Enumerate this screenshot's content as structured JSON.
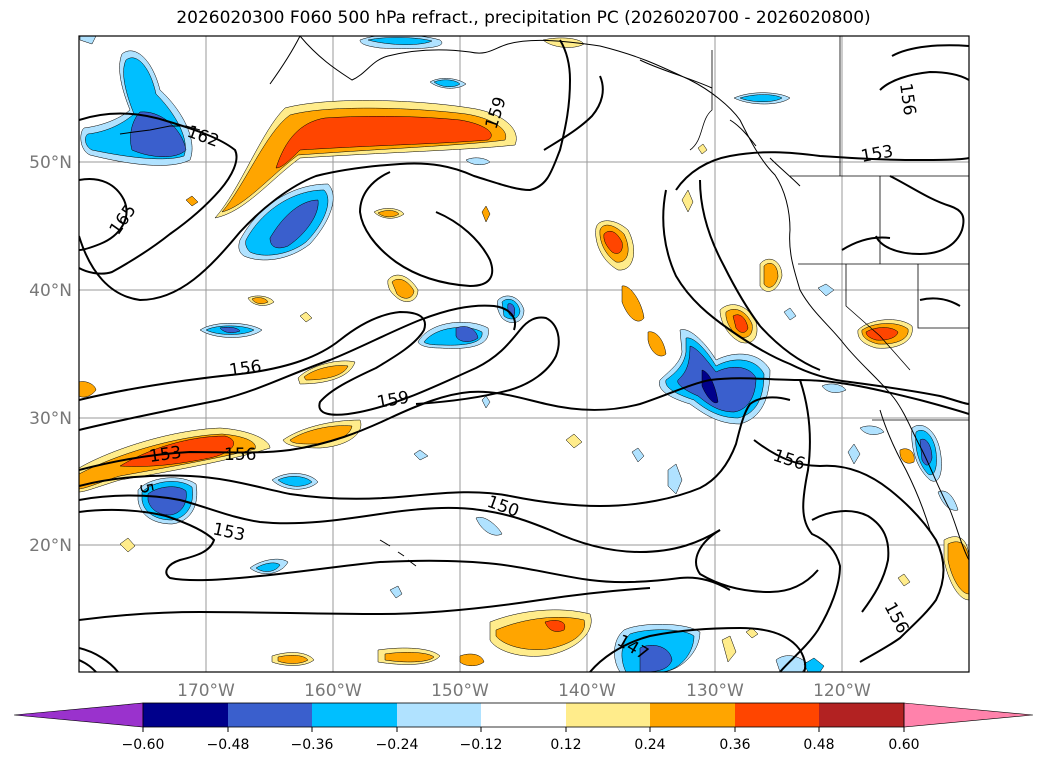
{
  "title": "2026020300 F060 500 hPa refract., precipitation PC (2026020700 - 2026020800)",
  "map": {
    "lat_labels": [
      "50°N",
      "40°N",
      "30°N",
      "20°N"
    ],
    "lon_labels": [
      "170°W",
      "160°W",
      "150°W",
      "140°W",
      "130°W",
      "120°W"
    ],
    "contour_labels": [
      "162",
      "165",
      "159",
      "156",
      "159",
      "153",
      "156",
      "153",
      "150",
      "156",
      "153",
      "156",
      "147",
      "156"
    ]
  },
  "colorbar": {
    "ticks": [
      "−0.60",
      "−0.48",
      "−0.36",
      "−0.24",
      "−0.12",
      "0.12",
      "0.24",
      "0.36",
      "0.48",
      "0.60"
    ],
    "colors": [
      "#9a32cd",
      "#00008b",
      "#3a5fcd",
      "#00bfff",
      "#b0e2ff",
      "#ffffff",
      "#ffec8b",
      "#ffa500",
      "#ff4500",
      "#b22222",
      "#ff82ab"
    ]
  }
}
